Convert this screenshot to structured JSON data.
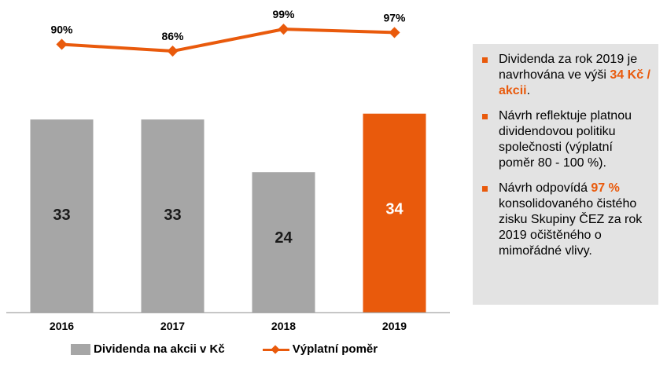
{
  "chart_data": {
    "type": "bar",
    "categories": [
      "2016",
      "2017",
      "2018",
      "2019"
    ],
    "series": [
      {
        "name": "Dividenda na akcii v Kč",
        "type": "bar",
        "values": [
          33,
          33,
          24,
          34
        ],
        "labels": [
          "33",
          "33",
          "24",
          "34"
        ]
      },
      {
        "name": "Výplatní poměr",
        "type": "line",
        "values": [
          90,
          86,
          99,
          97
        ],
        "labels": [
          "90%",
          "86%",
          "99%",
          "97%"
        ]
      }
    ],
    "bar_ylim": [
      0,
      40
    ],
    "line_ylim": [
      60,
      100
    ],
    "grid": false,
    "legend_position": "bottom",
    "colors": {
      "bar": "#a6a6a6",
      "highlight_bar": "#e95a0c",
      "line": "#e95a0c"
    },
    "highlight_index": 3,
    "title": "",
    "xlabel": "",
    "ylabel": ""
  },
  "legend": {
    "bar_label": "Dividenda na akcii v Kč",
    "line_label": "Výplatní poměr"
  },
  "notes": [
    {
      "before": "Dividenda za rok 2019 je navrhována ve výši ",
      "highlight": "34 Kč / akcii",
      "after": "."
    },
    {
      "before": "Návrh reflektuje platnou dividendovou politiku společnosti (výplatní poměr 80 - 100 %).",
      "highlight": "",
      "after": ""
    },
    {
      "before": "Návrh odpovídá ",
      "highlight": "97 %",
      "after": " konsolidovaného čistého zisku Skupiny ČEZ za rok 2019 očištěného o mimořádné vlivy."
    }
  ]
}
